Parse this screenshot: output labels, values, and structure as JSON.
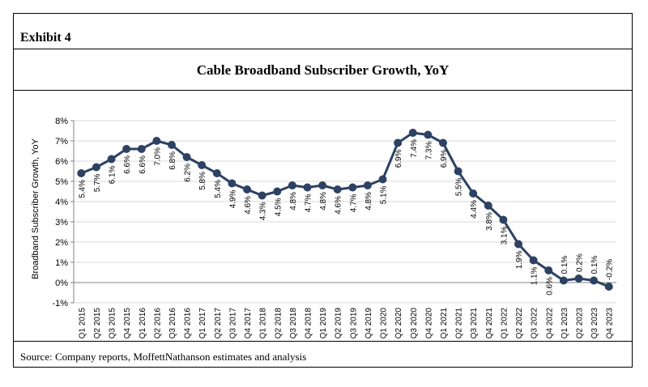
{
  "exhibit_label": "Exhibit 4",
  "source_note": "Source: Company reports, MoffettNathanson estimates and analysis",
  "colors": {
    "line": "#2d4263",
    "grid": "#d9d9d9",
    "axis": "#808080",
    "text": "#000000"
  },
  "chart_data": {
    "type": "line",
    "title": "Cable Broadband Subscriber Growth, YoY",
    "xlabel": "",
    "ylabel": "Broadband Subscriber Growth, YoY",
    "ylim": [
      -1,
      8
    ],
    "yticks": [
      -1,
      0,
      1,
      2,
      3,
      4,
      5,
      6,
      7,
      8
    ],
    "ytick_labels": [
      "-1%",
      "0%",
      "1%",
      "2%",
      "3%",
      "4%",
      "5%",
      "6%",
      "7%",
      "8%"
    ],
    "grid": true,
    "categories": [
      "Q1 2015",
      "Q2 2015",
      "Q3 2015",
      "Q4 2015",
      "Q1 2016",
      "Q2 2016",
      "Q3 2016",
      "Q4 2016",
      "Q1 2017",
      "Q2 2017",
      "Q3 2017",
      "Q4 2017",
      "Q1 2018",
      "Q2 2018",
      "Q3 2018",
      "Q4 2018",
      "Q1 2019",
      "Q2 2019",
      "Q3 2019",
      "Q4 2019",
      "Q1 2020",
      "Q2 2020",
      "Q3 2020",
      "Q4 2020",
      "Q1 2021",
      "Q2 2021",
      "Q3 2021",
      "Q4 2021",
      "Q1 2022",
      "Q2 2022",
      "Q3 2022",
      "Q4 2022",
      "Q1 2023",
      "Q2 2023",
      "Q3 2023",
      "Q4 2023"
    ],
    "values": [
      5.4,
      5.7,
      6.1,
      6.6,
      6.6,
      7.0,
      6.8,
      6.2,
      5.8,
      5.4,
      4.9,
      4.6,
      4.3,
      4.5,
      4.8,
      4.7,
      4.8,
      4.6,
      4.7,
      4.8,
      5.1,
      6.9,
      7.4,
      7.3,
      6.9,
      5.5,
      4.4,
      3.8,
      3.1,
      1.9,
      1.1,
      0.6,
      0.1,
      0.2,
      0.1,
      -0.2
    ],
    "data_labels": [
      "5.4%",
      "5.7%",
      "6.1%",
      "6.6%",
      "6.6%",
      "7.0%",
      "6.8%",
      "6.2%",
      "5.8%",
      "5.4%",
      "4.9%",
      "4.6%",
      "4.3%",
      "4.5%",
      "4.8%",
      "4.7%",
      "4.8%",
      "4.6%",
      "4.7%",
      "4.8%",
      "5.1%",
      "6.9%",
      "7.4%",
      "7.3%",
      "6.9%",
      "5.5%",
      "4.4%",
      "3.8%",
      "3.1%",
      "1.9%",
      "1.1%",
      "0.6%",
      "0.1%",
      "0.2%",
      "0.1%",
      "-0.2%"
    ]
  }
}
